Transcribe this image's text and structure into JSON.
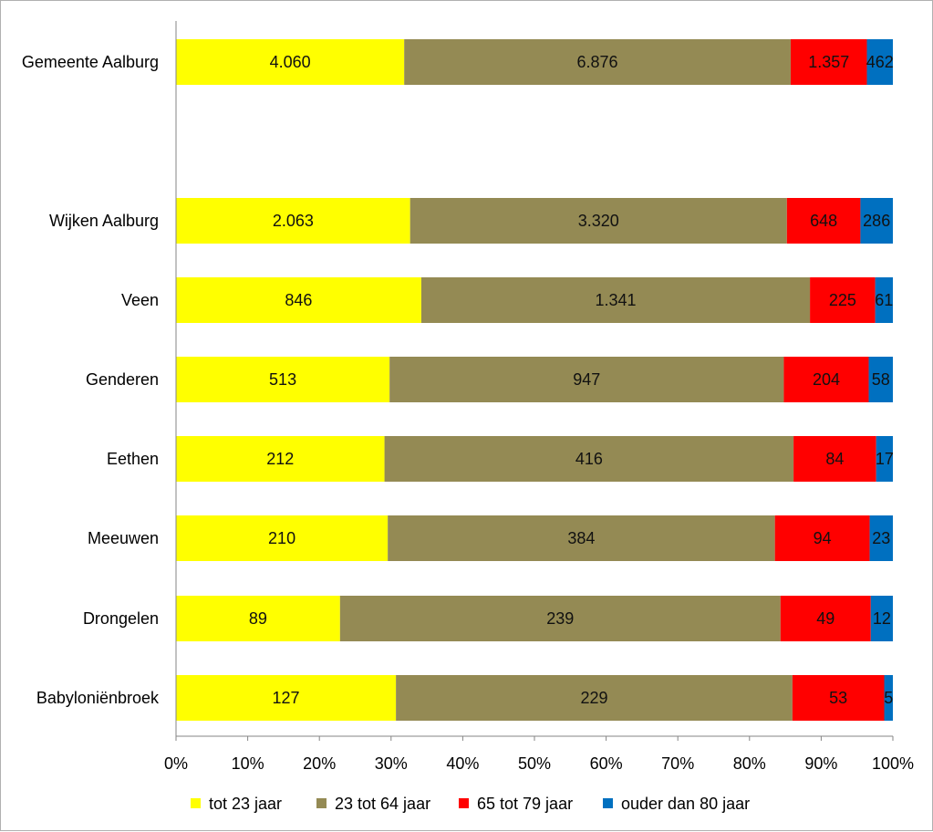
{
  "chart_data": {
    "type": "bar",
    "orientation": "horizontal",
    "stacking": "percent",
    "title": "",
    "xlabel": "",
    "ylabel": "",
    "xlim": [
      0,
      100
    ],
    "x_ticks": [
      "0%",
      "10%",
      "20%",
      "30%",
      "40%",
      "50%",
      "60%",
      "70%",
      "80%",
      "90%",
      "100%"
    ],
    "grid": false,
    "legend_position": "bottom",
    "categories": [
      "Gemeente Aalburg",
      "Wijken Aalburg",
      "Veen",
      "Genderen",
      "Eethen",
      "Meeuwen",
      "Drongelen",
      "Babyloniënbroek"
    ],
    "category_gap_after": [
      "Gemeente Aalburg"
    ],
    "series": [
      {
        "name": "tot 23 jaar",
        "color": "#ffff00",
        "values": [
          4060,
          2063,
          846,
          513,
          212,
          210,
          89,
          127
        ],
        "labels": [
          "4.060",
          "2.063",
          "846",
          "513",
          "212",
          "210",
          "89",
          "127"
        ]
      },
      {
        "name": "23 tot 64 jaar",
        "color": "#948a54",
        "values": [
          6876,
          3320,
          1341,
          947,
          416,
          384,
          239,
          229
        ],
        "labels": [
          "6.876",
          "3.320",
          "1.341",
          "947",
          "416",
          "384",
          "239",
          "229"
        ]
      },
      {
        "name": "65 tot 79 jaar",
        "color": "#ff0000",
        "values": [
          1357,
          648,
          225,
          204,
          84,
          94,
          49,
          53
        ],
        "labels": [
          "1.357",
          "648",
          "225",
          "204",
          "84",
          "94",
          "49",
          "53"
        ]
      },
      {
        "name": "ouder dan 80 jaar",
        "color": "#0070c0",
        "values": [
          462,
          286,
          61,
          58,
          17,
          23,
          12,
          5
        ],
        "labels": [
          "462",
          "286",
          "61",
          "58",
          "17",
          "23",
          "12",
          "5"
        ]
      }
    ]
  }
}
